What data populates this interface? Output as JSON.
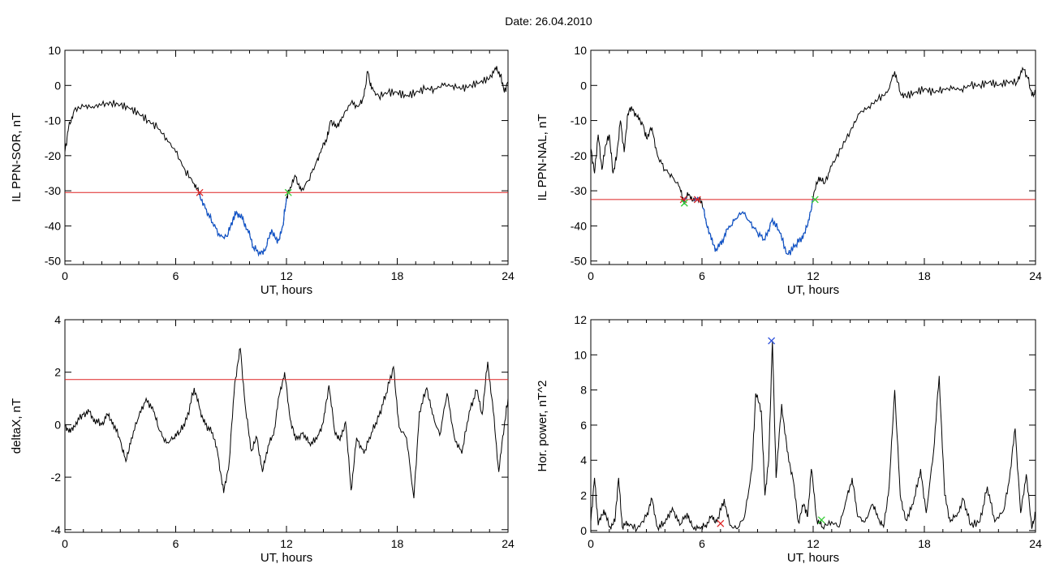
{
  "title": "Date:  26.04.2010",
  "colors": {
    "data": "#000000",
    "below": "#1155cc",
    "threshold": "#dd2222",
    "mark_red": "#dd2222",
    "mark_green": "#33cc33",
    "mark_blue": "#3355dd"
  },
  "chart_data": [
    {
      "id": "il-sor",
      "type": "line",
      "xlabel": "UT, hours",
      "ylabel": "IL PPN-SOR, nT",
      "xlim": [
        0,
        24
      ],
      "ylim": [
        -51,
        10
      ],
      "xticks": [
        0,
        6,
        12,
        18,
        24
      ],
      "yticks": [
        10,
        0,
        -10,
        -20,
        -30,
        -40,
        -50
      ],
      "threshold": -30.5,
      "points": [
        [
          0,
          -19
        ],
        [
          0.2,
          -12
        ],
        [
          0.5,
          -7
        ],
        [
          1,
          -6
        ],
        [
          1.5,
          -6
        ],
        [
          2,
          -5.5
        ],
        [
          2.5,
          -5
        ],
        [
          3,
          -5.5
        ],
        [
          3.5,
          -6.5
        ],
        [
          4,
          -8
        ],
        [
          4.5,
          -10
        ],
        [
          5,
          -12
        ],
        [
          5.5,
          -15
        ],
        [
          6,
          -19
        ],
        [
          6.5,
          -24
        ],
        [
          7,
          -28
        ],
        [
          7.3,
          -31
        ],
        [
          7.6,
          -35
        ],
        [
          8,
          -39
        ],
        [
          8.4,
          -43
        ],
        [
          8.8,
          -43
        ],
        [
          9.1,
          -38
        ],
        [
          9.3,
          -36
        ],
        [
          9.6,
          -38
        ],
        [
          9.9,
          -41
        ],
        [
          10.2,
          -46
        ],
        [
          10.6,
          -48
        ],
        [
          10.9,
          -46
        ],
        [
          11.2,
          -41
        ],
        [
          11.5,
          -45
        ],
        [
          11.8,
          -40
        ],
        [
          12,
          -32
        ],
        [
          12.2,
          -29
        ],
        [
          12.5,
          -26
        ],
        [
          12.8,
          -30
        ],
        [
          13.2,
          -27
        ],
        [
          13.6,
          -22
        ],
        [
          13.9,
          -18
        ],
        [
          14.2,
          -15
        ],
        [
          14.4,
          -10
        ],
        [
          14.7,
          -12
        ],
        [
          15,
          -9
        ],
        [
          15.5,
          -5
        ],
        [
          15.9,
          -6
        ],
        [
          16.2,
          -3
        ],
        [
          16.4,
          4
        ],
        [
          16.6,
          -1
        ],
        [
          17,
          -3
        ],
        [
          17.5,
          -2
        ],
        [
          18,
          -2
        ],
        [
          18.5,
          -3
        ],
        [
          19,
          -2
        ],
        [
          19.5,
          -1
        ],
        [
          20,
          -1
        ],
        [
          20.5,
          0
        ],
        [
          21,
          0
        ],
        [
          21.5,
          -1
        ],
        [
          22,
          0
        ],
        [
          22.5,
          1
        ],
        [
          23,
          2
        ],
        [
          23.3,
          5
        ],
        [
          23.6,
          3
        ],
        [
          23.8,
          -2
        ],
        [
          24,
          1
        ]
      ],
      "below_ranges": [
        [
          7.3,
          12.0
        ]
      ],
      "markers": [
        {
          "x": 7.3,
          "y": -30.5,
          "color": "red"
        },
        {
          "x": 12.1,
          "y": -30.5,
          "color": "green"
        }
      ]
    },
    {
      "id": "il-nal",
      "type": "line",
      "xlabel": "UT, hours",
      "ylabel": "IL PPN-NAL, nT",
      "xlim": [
        0,
        24
      ],
      "ylim": [
        -51,
        10
      ],
      "xticks": [
        0,
        6,
        12,
        18,
        24
      ],
      "yticks": [
        10,
        0,
        -10,
        -20,
        -30,
        -40,
        -50
      ],
      "threshold": -32.5,
      "points": [
        [
          0,
          -18
        ],
        [
          0.2,
          -25
        ],
        [
          0.4,
          -14
        ],
        [
          0.6,
          -24
        ],
        [
          0.8,
          -17
        ],
        [
          1,
          -14
        ],
        [
          1.2,
          -25
        ],
        [
          1.4,
          -20
        ],
        [
          1.6,
          -10
        ],
        [
          1.8,
          -19
        ],
        [
          2,
          -8
        ],
        [
          2.2,
          -6
        ],
        [
          2.5,
          -9
        ],
        [
          2.8,
          -11
        ],
        [
          3,
          -15
        ],
        [
          3.3,
          -12
        ],
        [
          3.6,
          -20
        ],
        [
          4,
          -24
        ],
        [
          4.4,
          -26
        ],
        [
          4.8,
          -29
        ],
        [
          5,
          -33
        ],
        [
          5.3,
          -31
        ],
        [
          5.6,
          -33
        ],
        [
          5.9,
          -32
        ],
        [
          6.2,
          -38
        ],
        [
          6.5,
          -44
        ],
        [
          6.8,
          -47
        ],
        [
          7.1,
          -44
        ],
        [
          7.4,
          -41
        ],
        [
          7.8,
          -38
        ],
        [
          8.2,
          -36
        ],
        [
          8.6,
          -39
        ],
        [
          9,
          -42
        ],
        [
          9.4,
          -44
        ],
        [
          9.8,
          -38
        ],
        [
          10.2,
          -42
        ],
        [
          10.6,
          -48
        ],
        [
          11,
          -46
        ],
        [
          11.4,
          -43
        ],
        [
          11.7,
          -40
        ],
        [
          12,
          -32
        ],
        [
          12.3,
          -26
        ],
        [
          12.6,
          -28
        ],
        [
          13,
          -23
        ],
        [
          13.5,
          -18
        ],
        [
          14,
          -13
        ],
        [
          14.5,
          -8
        ],
        [
          15,
          -6
        ],
        [
          15.5,
          -4
        ],
        [
          16,
          -2
        ],
        [
          16.4,
          4
        ],
        [
          16.7,
          -2
        ],
        [
          17,
          -3
        ],
        [
          17.5,
          -2
        ],
        [
          18,
          -1
        ],
        [
          18.5,
          -2
        ],
        [
          19,
          -1
        ],
        [
          19.5,
          -1
        ],
        [
          20,
          -1
        ],
        [
          20.5,
          0
        ],
        [
          21,
          0
        ],
        [
          21.5,
          1
        ],
        [
          22,
          0
        ],
        [
          22.5,
          1
        ],
        [
          23,
          1
        ],
        [
          23.3,
          5
        ],
        [
          23.6,
          2
        ],
        [
          23.8,
          -3
        ],
        [
          24,
          -2
        ]
      ],
      "below_ranges": [
        [
          5.0,
          5.2
        ],
        [
          5.6,
          5.8
        ],
        [
          6.0,
          12.0
        ]
      ],
      "markers": [
        {
          "x": 5.0,
          "y": -32.5,
          "color": "red"
        },
        {
          "x": 5.05,
          "y": -33.5,
          "color": "green"
        },
        {
          "x": 5.75,
          "y": -32.5,
          "color": "red"
        },
        {
          "x": 12.1,
          "y": -32.5,
          "color": "green"
        }
      ]
    },
    {
      "id": "deltax",
      "type": "line",
      "xlabel": "UT, hours",
      "ylabel": "deltaX, nT",
      "xlim": [
        0,
        24
      ],
      "ylim": [
        -4.1,
        4
      ],
      "xticks": [
        0,
        6,
        12,
        18,
        24
      ],
      "yticks": [
        4,
        2,
        0,
        -2,
        -4
      ],
      "threshold": 1.72,
      "points": [
        [
          0,
          0
        ],
        [
          0.3,
          -0.3
        ],
        [
          0.6,
          0.1
        ],
        [
          1,
          0.4
        ],
        [
          1.3,
          0.5
        ],
        [
          1.6,
          0.2
        ],
        [
          2,
          0
        ],
        [
          2.3,
          0.4
        ],
        [
          2.6,
          0.1
        ],
        [
          3,
          -0.6
        ],
        [
          3.3,
          -1.4
        ],
        [
          3.6,
          -0.5
        ],
        [
          4,
          0.3
        ],
        [
          4.4,
          1
        ],
        [
          4.8,
          0.5
        ],
        [
          5.1,
          -0.2
        ],
        [
          5.5,
          -0.7
        ],
        [
          5.9,
          -0.5
        ],
        [
          6.2,
          -0.3
        ],
        [
          6.6,
          0.2
        ],
        [
          7,
          1.4
        ],
        [
          7.3,
          0.6
        ],
        [
          7.6,
          0
        ],
        [
          8,
          -0.3
        ],
        [
          8.3,
          -1.2
        ],
        [
          8.6,
          -2.6
        ],
        [
          8.9,
          -1.4
        ],
        [
          9.2,
          1.6
        ],
        [
          9.5,
          2.9
        ],
        [
          9.8,
          0.5
        ],
        [
          10.1,
          -1
        ],
        [
          10.4,
          -0.5
        ],
        [
          10.7,
          -1.8
        ],
        [
          11,
          -0.8
        ],
        [
          11.3,
          -0.4
        ],
        [
          11.6,
          1.1
        ],
        [
          11.9,
          2
        ],
        [
          12.2,
          0.2
        ],
        [
          12.5,
          -0.6
        ],
        [
          12.9,
          -0.3
        ],
        [
          13.3,
          -0.8
        ],
        [
          13.7,
          -0.4
        ],
        [
          14,
          0.1
        ],
        [
          14.3,
          1.5
        ],
        [
          14.6,
          -0.2
        ],
        [
          14.9,
          -0.6
        ],
        [
          15.2,
          0.1
        ],
        [
          15.5,
          -2.5
        ],
        [
          15.8,
          -0.5
        ],
        [
          16.2,
          -1.1
        ],
        [
          16.6,
          -0.3
        ],
        [
          17,
          0.3
        ],
        [
          17.4,
          1.2
        ],
        [
          17.8,
          2.2
        ],
        [
          18.1,
          -0.1
        ],
        [
          18.5,
          -0.5
        ],
        [
          18.9,
          -2.8
        ],
        [
          19.2,
          0.5
        ],
        [
          19.6,
          1.4
        ],
        [
          19.9,
          0.4
        ],
        [
          20.3,
          -0.4
        ],
        [
          20.7,
          1.2
        ],
        [
          21.1,
          -0.5
        ],
        [
          21.5,
          -1.1
        ],
        [
          21.9,
          0.5
        ],
        [
          22.3,
          1.3
        ],
        [
          22.6,
          0.4
        ],
        [
          22.9,
          2.4
        ],
        [
          23.2,
          0.5
        ],
        [
          23.5,
          -1.8
        ],
        [
          23.8,
          0
        ],
        [
          24,
          1
        ]
      ],
      "below_ranges": [],
      "markers": []
    },
    {
      "id": "hor-power",
      "type": "line",
      "xlabel": "UT, hours",
      "ylabel": "Hor. power, nT^2",
      "xlim": [
        0,
        24
      ],
      "ylim": [
        -0.1,
        12
      ],
      "xticks": [
        0,
        6,
        12,
        18,
        24
      ],
      "yticks": [
        12,
        10,
        8,
        6,
        4,
        2,
        0
      ],
      "threshold": null,
      "points": [
        [
          0,
          0.5
        ],
        [
          0.2,
          3
        ],
        [
          0.4,
          0.3
        ],
        [
          0.7,
          1.2
        ],
        [
          1,
          0.2
        ],
        [
          1.3,
          0.5
        ],
        [
          1.5,
          3
        ],
        [
          1.7,
          0.2
        ],
        [
          2,
          0.4
        ],
        [
          2.5,
          0.1
        ],
        [
          3,
          0.8
        ],
        [
          3.3,
          1.8
        ],
        [
          3.6,
          0.2
        ],
        [
          4,
          0.4
        ],
        [
          4.4,
          1.3
        ],
        [
          4.8,
          0.3
        ],
        [
          5.2,
          1
        ],
        [
          5.5,
          0.2
        ],
        [
          5.9,
          0.1
        ],
        [
          6.2,
          0.3
        ],
        [
          6.5,
          0.8
        ],
        [
          6.8,
          0.5
        ],
        [
          7.2,
          1.8
        ],
        [
          7.5,
          0.3
        ],
        [
          7.9,
          0.1
        ],
        [
          8.3,
          0.8
        ],
        [
          8.7,
          3.5
        ],
        [
          8.9,
          7.8
        ],
        [
          9.2,
          6.8
        ],
        [
          9.4,
          2
        ],
        [
          9.6,
          4
        ],
        [
          9.8,
          10.8
        ],
        [
          10,
          3
        ],
        [
          10.3,
          7.2
        ],
        [
          10.6,
          4.5
        ],
        [
          10.9,
          3
        ],
        [
          11.2,
          0.5
        ],
        [
          11.5,
          1.5
        ],
        [
          11.7,
          0.8
        ],
        [
          11.9,
          3.5
        ],
        [
          12.2,
          0.6
        ],
        [
          12.5,
          0.2
        ],
        [
          13,
          0.5
        ],
        [
          13.4,
          0.2
        ],
        [
          13.8,
          1.8
        ],
        [
          14.1,
          3
        ],
        [
          14.4,
          0.8
        ],
        [
          14.8,
          0.5
        ],
        [
          15.2,
          1.5
        ],
        [
          15.5,
          0.7
        ],
        [
          15.8,
          0.2
        ],
        [
          16.1,
          2.5
        ],
        [
          16.4,
          8
        ],
        [
          16.7,
          2
        ],
        [
          17,
          0.6
        ],
        [
          17.4,
          1.5
        ],
        [
          17.8,
          3.5
        ],
        [
          18.1,
          1
        ],
        [
          18.5,
          4.5
        ],
        [
          18.8,
          8.8
        ],
        [
          19.1,
          2
        ],
        [
          19.4,
          0.5
        ],
        [
          19.8,
          1
        ],
        [
          20.1,
          1.8
        ],
        [
          20.5,
          0.3
        ],
        [
          21,
          0.5
        ],
        [
          21.4,
          2.5
        ],
        [
          21.8,
          0.5
        ],
        [
          22.3,
          1.2
        ],
        [
          22.6,
          3
        ],
        [
          22.9,
          5.8
        ],
        [
          23.2,
          1
        ],
        [
          23.5,
          3.2
        ],
        [
          23.8,
          0.1
        ],
        [
          24,
          1
        ]
      ],
      "below_ranges": [],
      "markers": [
        {
          "x": 7.0,
          "y": 0.4,
          "color": "red"
        },
        {
          "x": 9.75,
          "y": 10.8,
          "color": "blue"
        },
        {
          "x": 12.45,
          "y": 0.6,
          "color": "green"
        }
      ]
    }
  ]
}
